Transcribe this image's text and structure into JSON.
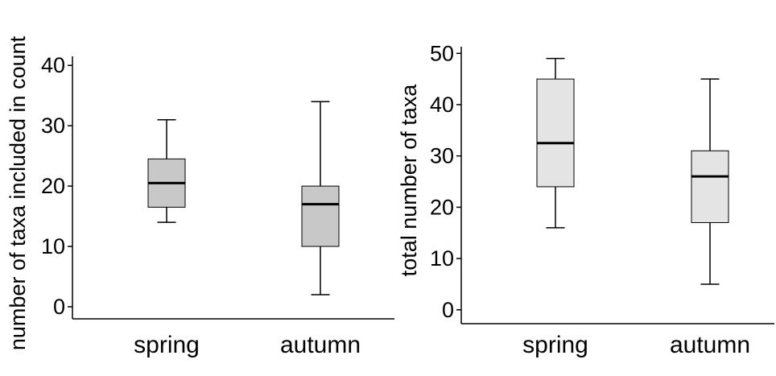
{
  "chart_data": [
    {
      "type": "box",
      "xlabel": "",
      "ylabel": "number of taxa included in count",
      "categories": [
        "spring",
        "autumn"
      ],
      "yticks": [
        0,
        10,
        20,
        30,
        40
      ],
      "ylim": [
        -2,
        41.5
      ],
      "box_color": "#c8c8c8",
      "boxes": [
        {
          "category": "spring",
          "min": 14,
          "q1": 16.5,
          "median": 20.5,
          "q3": 24.5,
          "max": 31
        },
        {
          "category": "autumn",
          "min": 2,
          "q1": 10,
          "median": 17,
          "q3": 20,
          "max": 34
        }
      ]
    },
    {
      "type": "box",
      "xlabel": "",
      "ylabel": "total number of taxa",
      "categories": [
        "spring",
        "autumn"
      ],
      "yticks": [
        0,
        10,
        20,
        30,
        40,
        50
      ],
      "ylim": [
        -2.7,
        51.3
      ],
      "box_color": "#e4e4e4",
      "boxes": [
        {
          "category": "spring",
          "min": 16,
          "q1": 24,
          "median": 32.5,
          "q3": 45,
          "max": 49
        },
        {
          "category": "autumn",
          "min": 5,
          "q1": 17,
          "median": 26,
          "q3": 31,
          "max": 45
        }
      ]
    }
  ]
}
